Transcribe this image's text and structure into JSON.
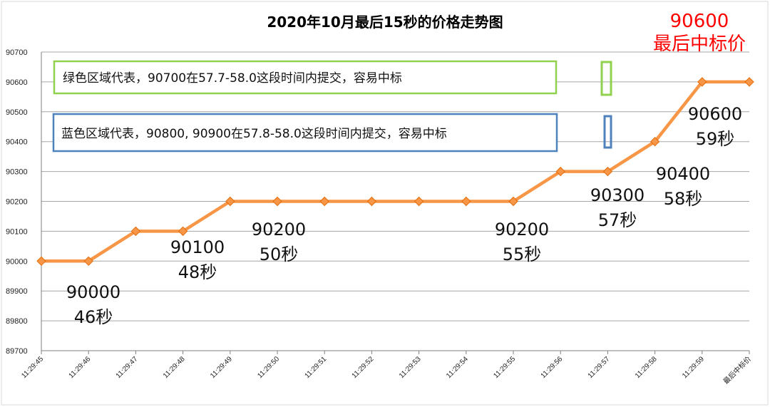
{
  "chart_data": {
    "type": "line",
    "title": "2020年10月最后15秒的价格走势图",
    "categories": [
      "11:29:45",
      "11:29:46",
      "11:29:47",
      "11:29:48",
      "11:29:49",
      "11:29:50",
      "11:29:51",
      "11:29:52",
      "11:29:53",
      "11:29:54",
      "11:29:55",
      "11:29:56",
      "11:29:57",
      "11:29:58",
      "11:29:59",
      "最后中标价"
    ],
    "values": [
      90000,
      90000,
      90100,
      90100,
      90200,
      90200,
      90200,
      90200,
      90200,
      90200,
      90200,
      90300,
      90300,
      90400,
      90600,
      90600
    ],
    "ylim": [
      89700,
      90700
    ],
    "yticks": [
      "89700",
      "89800",
      "89900",
      "90000",
      "90100",
      "90200",
      "90300",
      "90400",
      "90500",
      "90600",
      "90700"
    ],
    "grid": true,
    "colors": {
      "line": "#f79646",
      "marker_edge": "#e46c0a",
      "grid": "#a6a6a6",
      "green_box": "#92d050",
      "blue_box": "#4f81bd",
      "red_text": "#ff0000"
    },
    "annotations": [
      {
        "price": "90000",
        "time": "46秒"
      },
      {
        "price": "90100",
        "time": "48秒"
      },
      {
        "price": "90200",
        "time": "50秒"
      },
      {
        "price": "90200",
        "time": "55秒"
      },
      {
        "price": "90300",
        "time": "57秒"
      },
      {
        "price": "90400",
        "time": "58秒"
      },
      {
        "price": "90600",
        "time": "59秒"
      }
    ],
    "final_price": {
      "value": "90600",
      "label": "最后中标价"
    },
    "legend_boxes": {
      "green": "绿色区域代表，90700在57.7-58.0这段时间内提交，容易中标",
      "blue": "蓝色区域代表，90800, 90900在57.8-58.0这段时间内提交，容易中标"
    }
  }
}
